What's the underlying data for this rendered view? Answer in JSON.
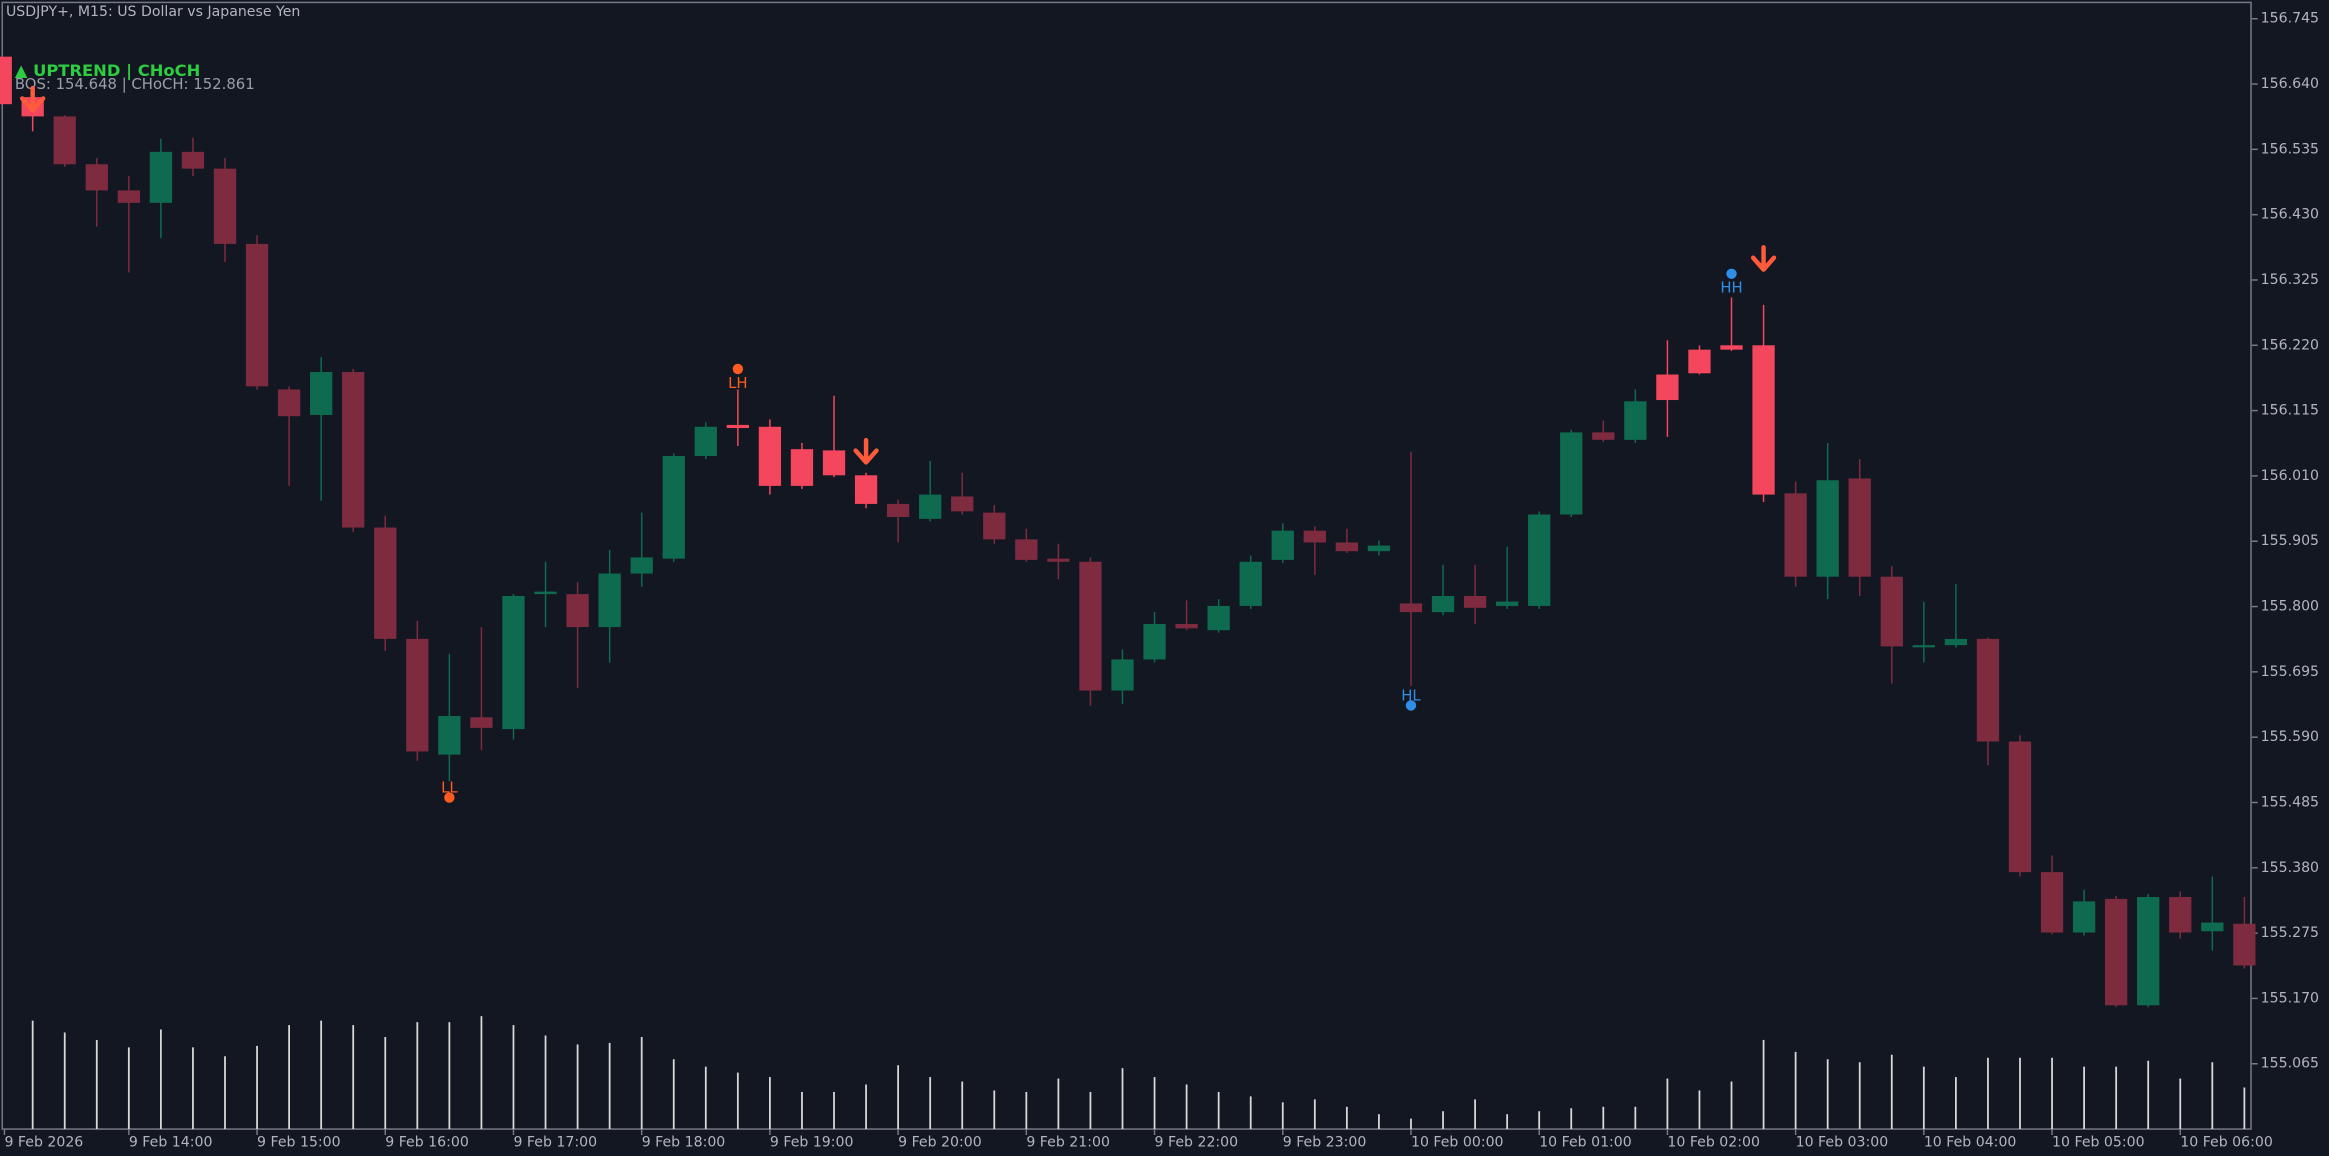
{
  "chart_data": {
    "type": "candlestick",
    "title": "USDJPY+, M15:  US Dollar vs Japanese Yen",
    "trend": "▲ UPTREND | CHoCH",
    "levels": "BOS: 154.648 | CHoCH: 152.861",
    "categories": [
      "9 Feb 2026",
      null,
      null,
      "9 Feb 14:00",
      null,
      null,
      null,
      "9 Feb 15:00",
      null,
      null,
      null,
      "9 Feb 16:00",
      null,
      null,
      null,
      "9 Feb 17:00",
      null,
      null,
      null,
      "9 Feb 18:00",
      null,
      null,
      null,
      "9 Feb 19:00",
      null,
      null,
      null,
      "9 Feb 20:00",
      null,
      null,
      null,
      "9 Feb 21:00",
      null,
      null,
      null,
      "9 Feb 22:00",
      null,
      null,
      null,
      "9 Feb 23:00",
      null,
      null,
      null,
      "10 Feb 00:00",
      null,
      null,
      null,
      "10 Feb 01:00",
      null,
      null,
      null,
      "10 Feb 02:00",
      null,
      null,
      null,
      "10 Feb 03:00",
      null,
      null,
      null,
      "10 Feb 04:00",
      null,
      null,
      null,
      "10 Feb 05:00",
      null,
      null,
      null,
      "10 Feb 06:00",
      null,
      null
    ],
    "open": [
      156.619,
      156.588,
      156.511,
      156.469,
      156.449,
      156.531,
      156.504,
      156.383,
      156.149,
      156.108,
      156.177,
      155.927,
      155.748,
      155.562,
      155.622,
      155.603,
      155.82,
      155.82,
      155.767,
      155.853,
      155.877,
      156.042,
      156.092,
      156.089,
      156.053,
      156.051,
      156.011,
      155.965,
      155.941,
      155.977,
      155.951,
      155.908,
      155.877,
      155.872,
      155.665,
      155.715,
      155.772,
      155.762,
      155.801,
      155.875,
      155.922,
      155.903,
      155.889,
      155.805,
      155.791,
      155.817,
      155.801,
      155.801,
      155.948,
      156.08,
      156.068,
      156.173,
      156.213,
      156.22,
      156.22,
      155.982,
      155.848,
      156.006,
      155.848,
      155.736,
      155.738,
      155.748,
      155.583,
      155.373,
      155.276,
      155.33,
      155.159,
      155.333,
      155.278,
      155.29
    ],
    "high": [
      156.631,
      156.59,
      156.521,
      156.492,
      156.552,
      156.554,
      156.521,
      156.397,
      156.154,
      156.201,
      156.182,
      155.946,
      155.777,
      155.724,
      155.767,
      155.82,
      155.872,
      155.839,
      155.891,
      155.951,
      156.046,
      156.096,
      156.149,
      156.101,
      156.063,
      156.139,
      156.015,
      155.972,
      156.034,
      156.015,
      155.963,
      155.925,
      155.901,
      155.879,
      155.731,
      155.791,
      155.81,
      155.812,
      155.882,
      155.934,
      155.929,
      155.925,
      155.906,
      156.049,
      155.867,
      155.867,
      155.896,
      155.953,
      156.084,
      156.099,
      156.149,
      156.228,
      156.22,
      156.297,
      156.285,
      156.001,
      156.063,
      156.037,
      155.865,
      155.808,
      155.836,
      155.75,
      155.593,
      155.4,
      155.345,
      155.335,
      155.338,
      155.342,
      155.366,
      155.333
    ],
    "low": [
      156.564,
      156.507,
      156.411,
      156.337,
      156.392,
      156.492,
      156.354,
      156.149,
      155.994,
      155.97,
      155.92,
      155.729,
      155.552,
      155.519,
      155.569,
      155.586,
      155.767,
      155.669,
      155.71,
      155.832,
      155.872,
      156.037,
      156.058,
      155.98,
      155.989,
      156.008,
      155.958,
      155.903,
      155.937,
      155.948,
      155.901,
      155.872,
      155.844,
      155.641,
      155.643,
      155.71,
      155.762,
      155.758,
      155.796,
      155.87,
      155.851,
      155.886,
      155.882,
      155.672,
      155.786,
      155.772,
      155.796,
      155.796,
      155.944,
      156.065,
      156.063,
      156.073,
      156.173,
      156.211,
      155.968,
      155.832,
      155.812,
      155.817,
      155.676,
      155.71,
      155.734,
      155.545,
      155.366,
      155.273,
      155.271,
      155.156,
      155.156,
      155.266,
      155.247,
      155.218
    ],
    "close": [
      156.588,
      156.511,
      156.469,
      156.449,
      156.531,
      156.504,
      156.383,
      156.154,
      156.106,
      156.177,
      155.927,
      155.748,
      155.567,
      155.624,
      155.605,
      155.817,
      155.824,
      155.767,
      155.853,
      155.879,
      156.042,
      156.089,
      156.087,
      155.994,
      155.994,
      156.011,
      155.965,
      155.944,
      155.98,
      155.953,
      155.908,
      155.875,
      155.872,
      155.665,
      155.715,
      155.772,
      155.765,
      155.801,
      155.872,
      155.922,
      155.903,
      155.889,
      155.898,
      155.791,
      155.817,
      155.798,
      155.808,
      155.948,
      156.08,
      156.068,
      156.13,
      156.132,
      156.175,
      156.213,
      155.98,
      155.848,
      156.003,
      155.848,
      155.736,
      155.738,
      155.748,
      155.583,
      155.373,
      155.276,
      155.326,
      155.159,
      155.333,
      155.276,
      155.292,
      155.223
    ],
    "volumes": [
      73,
      65,
      60,
      55,
      67,
      55,
      49,
      56,
      70,
      73,
      70,
      62,
      72,
      72,
      76,
      70,
      63,
      57,
      58,
      62,
      47,
      42,
      38,
      35,
      25,
      25,
      30,
      43,
      35,
      32,
      26,
      25,
      34,
      25,
      41,
      35,
      30,
      25,
      22,
      18,
      20,
      15,
      10,
      7,
      12,
      20,
      10,
      12,
      14,
      15,
      15,
      34,
      26,
      32,
      60,
      52,
      47,
      45,
      50,
      42,
      35,
      48,
      48,
      48,
      42,
      42,
      46,
      34,
      45,
      28
    ],
    "up_color": "#0f6b50",
    "down_color": "#7e2b40",
    "highlight_color": "#f4475e",
    "highlighted": [
      0,
      22,
      23,
      24,
      25,
      26,
      51,
      52,
      53,
      54
    ],
    "volume_color": "#d9d9d9",
    "swings": [
      {
        "label": "LL",
        "index": 13,
        "price": 155.493,
        "color": "#ff5a1f"
      },
      {
        "label": "LH",
        "index": 22,
        "price": 156.182,
        "color": "#ff5a1f"
      },
      {
        "label": "HL",
        "index": 43,
        "price": 155.641,
        "color": "#2f8fe8"
      },
      {
        "label": "HH",
        "index": 53,
        "price": 156.335,
        "color": "#2f8fe8"
      }
    ],
    "signals": [
      {
        "index": 0,
        "price": 156.612
      },
      {
        "index": 26,
        "price": 156.046
      },
      {
        "index": 54,
        "price": 156.356
      }
    ],
    "signal_color": "#ff5a3c",
    "trend_color": "#2ecc40",
    "ylim": [
      154.96,
      156.77
    ],
    "yticks": [
      156.745,
      {
        "value": 156.64,
        "label": "156.640"
      },
      156.535,
      {
        "value": 156.43,
        "label": "156.430"
      },
      156.325,
      {
        "value": 156.22,
        "label": "156.220"
      },
      156.115,
      {
        "value": 156.01,
        "label": "156.010"
      },
      155.905,
      {
        "value": 155.8,
        "label": "155.800"
      },
      155.695,
      {
        "value": 155.59,
        "label": "155.590"
      },
      155.485,
      {
        "value": 155.38,
        "label": "155.380"
      },
      155.275,
      {
        "value": 155.17,
        "label": "155.170"
      },
      155.065
    ]
  }
}
